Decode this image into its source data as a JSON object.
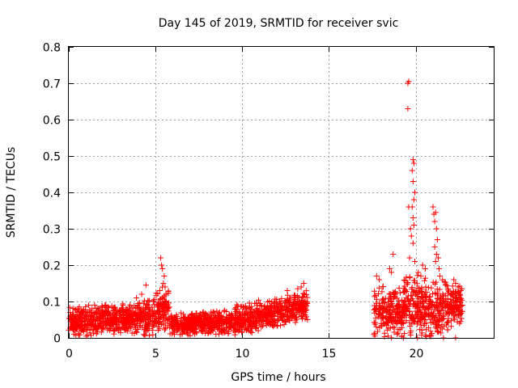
{
  "chart_data": {
    "type": "scatter",
    "title": "Day 145 of 2019, SRMTID for receiver svic",
    "xlabel": "GPS time / hours",
    "ylabel": "SRMTID / TECUs",
    "xlim": [
      0,
      24.5
    ],
    "ylim": [
      0,
      0.8
    ],
    "xticks": [
      0,
      5,
      10,
      15,
      20
    ],
    "xtick_labels": [
      "0",
      "5",
      "10",
      "15",
      "20"
    ],
    "yticks": [
      0,
      0.1,
      0.2,
      0.3,
      0.4,
      0.5,
      0.6,
      0.7,
      0.8
    ],
    "ytick_labels": [
      "0",
      "0.1",
      "0.2",
      "0.3",
      "0.4",
      "0.5",
      "0.6",
      "0.7",
      "0.8"
    ],
    "grid": true,
    "marker": "+",
    "color": "#ff0000",
    "series": [
      {
        "name": "svic",
        "segments": [
          {
            "t_start": 0.0,
            "t_end": 4.3,
            "base": 0.045,
            "base_end": 0.055,
            "spread": 0.045
          },
          {
            "t_start": 4.3,
            "t_end": 5.0,
            "base": 0.05,
            "base_end": 0.06,
            "spread": 0.06
          },
          {
            "t_start": 5.0,
            "t_end": 5.8,
            "base": 0.06,
            "base_end": 0.09,
            "spread": 0.07
          },
          {
            "t_start": 5.8,
            "t_end": 9.5,
            "base": 0.035,
            "base_end": 0.045,
            "spread": 0.035
          },
          {
            "t_start": 9.5,
            "t_end": 13.8,
            "base": 0.045,
            "base_end": 0.09,
            "spread": 0.045
          },
          {
            "t_start": 17.6,
            "t_end": 19.3,
            "base": 0.08,
            "base_end": 0.06,
            "spread": 0.075
          },
          {
            "t_start": 19.3,
            "t_end": 21.9,
            "base": 0.09,
            "base_end": 0.08,
            "spread": 0.09
          },
          {
            "t_start": 21.9,
            "t_end": 22.7,
            "base": 0.09,
            "base_end": 0.09,
            "spread": 0.06
          }
        ],
        "points": [
          [
            5.3,
            0.22
          ],
          [
            5.35,
            0.2
          ],
          [
            5.4,
            0.19
          ],
          [
            5.45,
            0.15
          ],
          [
            5.5,
            0.17
          ],
          [
            5.55,
            0.14
          ],
          [
            5.25,
            0.13
          ],
          [
            5.6,
            0.12
          ],
          [
            4.45,
            0.145
          ],
          [
            4.2,
            0.12
          ],
          [
            3.9,
            0.11
          ],
          [
            13.55,
            0.15
          ],
          [
            13.4,
            0.14
          ],
          [
            13.2,
            0.135
          ],
          [
            12.6,
            0.13
          ],
          [
            19.55,
            0.7
          ],
          [
            19.6,
            0.705
          ],
          [
            19.55,
            0.63
          ],
          [
            19.85,
            0.49
          ],
          [
            19.9,
            0.48
          ],
          [
            19.8,
            0.46
          ],
          [
            19.85,
            0.43
          ],
          [
            19.95,
            0.4
          ],
          [
            19.9,
            0.38
          ],
          [
            19.8,
            0.36
          ],
          [
            19.85,
            0.33
          ],
          [
            19.9,
            0.31
          ],
          [
            19.75,
            0.28
          ],
          [
            19.7,
            0.3
          ],
          [
            19.85,
            0.26
          ],
          [
            19.65,
            0.22
          ],
          [
            19.95,
            0.21
          ],
          [
            19.6,
            0.36
          ],
          [
            18.7,
            0.23
          ],
          [
            18.5,
            0.19
          ],
          [
            18.6,
            0.18
          ],
          [
            17.75,
            0.17
          ],
          [
            17.9,
            0.16
          ],
          [
            20.15,
            0.18
          ],
          [
            20.3,
            0.17
          ],
          [
            20.4,
            0.2
          ],
          [
            20.55,
            0.19
          ],
          [
            21.0,
            0.36
          ],
          [
            21.05,
            0.34
          ],
          [
            21.15,
            0.345
          ],
          [
            21.2,
            0.3
          ],
          [
            21.1,
            0.32
          ],
          [
            21.25,
            0.27
          ],
          [
            21.1,
            0.25
          ],
          [
            21.2,
            0.23
          ],
          [
            21.3,
            0.22
          ],
          [
            21.15,
            0.21
          ],
          [
            21.35,
            0.19
          ],
          [
            21.4,
            0.17
          ],
          [
            22.2,
            0.16
          ],
          [
            22.3,
            0.15
          ],
          [
            22.45,
            0.14
          ],
          [
            22.6,
            0.13
          ],
          [
            22.55,
            0.12
          ],
          [
            17.6,
            0.01
          ],
          [
            17.65,
            0.005
          ],
          [
            18.6,
            0.0
          ],
          [
            19.2,
            0.005
          ],
          [
            19.3,
            0.0
          ],
          [
            20.1,
            0.0
          ],
          [
            20.8,
            0.005
          ],
          [
            21.6,
            0.0
          ],
          [
            22.3,
            0.0
          ]
        ]
      }
    ]
  }
}
